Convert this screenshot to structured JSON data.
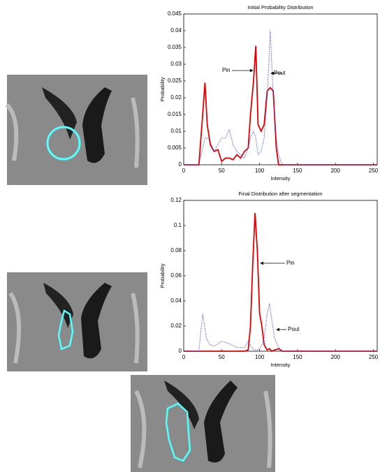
{
  "chart_data": [
    {
      "type": "line",
      "title": "Initial Probability Distribution",
      "x_label": "Intensity",
      "y_label": "Probability",
      "x": [
        0,
        20,
        25,
        28,
        31,
        35,
        40,
        45,
        50,
        55,
        60,
        65,
        70,
        75,
        80,
        85,
        88,
        92,
        95,
        98,
        102,
        106,
        110,
        114,
        118,
        122,
        125,
        130,
        255
      ],
      "series": [
        {
          "name": "Pin",
          "color": "#e00000",
          "style": "solid",
          "values": [
            0,
            0,
            0.015,
            0.0245,
            0.012,
            0.006,
            0.004,
            0.0045,
            0.001,
            0.002,
            0.002,
            0.0015,
            0.003,
            0.002,
            0.004,
            0.005,
            0.015,
            0.025,
            0.0355,
            0.012,
            0.01,
            0.012,
            0.022,
            0.023,
            0.022,
            0.005,
            0,
            0,
            0
          ]
        },
        {
          "name": "Pout",
          "color": "#3a3aff",
          "style": "dotted",
          "values": [
            0,
            0,
            0.005,
            0.008,
            0.008,
            0.007,
            0.004,
            0.006,
            0.008,
            0.008,
            0.0105,
            0.006,
            0.004,
            0.003,
            0.002,
            0.005,
            0.008,
            0.01,
            0.008,
            0.003,
            0.004,
            0.008,
            0.02,
            0.04,
            0.02,
            0.008,
            0.003,
            0,
            0
          ]
        }
      ],
      "xlim": [
        0,
        255
      ],
      "xticks": [
        0,
        50,
        100,
        150,
        200,
        250
      ],
      "ylim": [
        0,
        0.045
      ],
      "yticks": [
        0,
        0.005,
        0.01,
        0.015,
        0.02,
        0.025,
        0.03,
        0.035,
        0.04,
        0.045
      ]
    },
    {
      "type": "line",
      "title": "Final Distribution after segmentation",
      "x_label": "Intensity",
      "y_label": "Probability",
      "x": [
        0,
        20,
        25,
        30,
        35,
        40,
        50,
        60,
        70,
        80,
        85,
        88,
        91,
        94,
        97,
        100,
        103,
        106,
        110,
        113,
        116,
        120,
        125,
        130,
        255
      ],
      "series": [
        {
          "name": "Pin",
          "color": "#e00000",
          "style": "solid",
          "values": [
            0,
            0,
            0,
            0,
            0,
            0,
            0,
            0,
            0,
            0,
            0.001,
            0.02,
            0.07,
            0.11,
            0.08,
            0.03,
            0.02,
            0.005,
            0.001,
            0.002,
            0,
            0.001,
            0.002,
            0,
            0
          ]
        },
        {
          "name": "Pout",
          "color": "#3a3aff",
          "style": "dotted",
          "values": [
            0,
            0,
            0.03,
            0.01,
            0.005,
            0.004,
            0.008,
            0.006,
            0.003,
            0.003,
            0.008,
            0.005,
            0.002,
            0.001,
            0.001,
            0.002,
            0.005,
            0.01,
            0.03,
            0.038,
            0.025,
            0.01,
            0.003,
            0,
            0
          ]
        }
      ],
      "xlim": [
        0,
        255
      ],
      "xticks": [
        0,
        50,
        100,
        150,
        200,
        250
      ],
      "ylim": [
        0,
        0.12
      ],
      "yticks": [
        0,
        0.02,
        0.04,
        0.06,
        0.08,
        0.1,
        0.12
      ]
    }
  ]
}
